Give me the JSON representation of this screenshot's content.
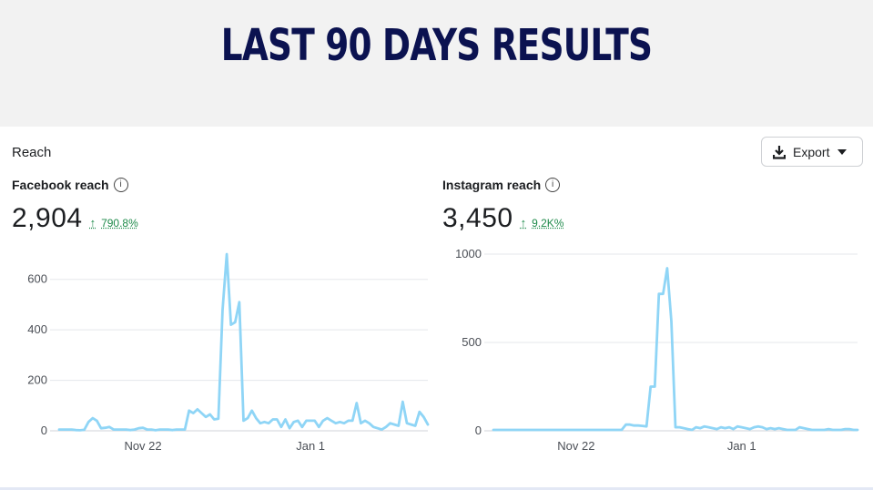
{
  "banner": {
    "title": "LAST 90 DAYS RESULTS"
  },
  "section": {
    "title": "Reach"
  },
  "export_button": {
    "label": "Export",
    "icon": "download-icon"
  },
  "colors": {
    "line": "#8fd5f6",
    "positive": "#1e8a4a",
    "banner_title": "#0b1250"
  },
  "chart_data": [
    {
      "type": "line",
      "title": "Facebook reach",
      "value": "2,904",
      "change": "790.8%",
      "change_direction": "up",
      "ylim": [
        0,
        700
      ],
      "y_ticks": [
        0,
        200,
        400,
        600
      ],
      "x_tick_labels": [
        {
          "label": "Nov 22",
          "day": 20
        },
        {
          "label": "Jan 1",
          "day": 60
        }
      ],
      "series": [
        {
          "values": [
            5,
            5,
            5,
            5,
            3,
            2,
            4,
            35,
            50,
            40,
            10,
            12,
            15,
            5,
            5,
            5,
            5,
            3,
            5,
            10,
            12,
            5,
            5,
            2,
            5,
            5,
            5,
            3,
            5,
            5,
            5,
            80,
            70,
            85,
            70,
            55,
            65,
            45,
            48,
            480,
            700,
            420,
            430,
            510,
            40,
            50,
            80,
            50,
            30,
            35,
            30,
            45,
            45,
            15,
            45,
            10,
            35,
            40,
            15,
            40,
            40,
            40,
            15,
            40,
            50,
            40,
            30,
            35,
            30,
            40,
            40,
            110,
            30,
            40,
            30,
            15,
            10,
            5,
            15,
            30,
            25,
            20,
            115,
            30,
            25,
            20,
            75,
            55,
            25
          ]
        }
      ]
    },
    {
      "type": "line",
      "title": "Instagram reach",
      "value": "3,450",
      "change": "9.2K%",
      "change_direction": "up",
      "ylim": [
        0,
        1000
      ],
      "y_ticks": [
        0,
        500,
        1000
      ],
      "x_tick_labels": [
        {
          "label": "Nov 22",
          "day": 20
        },
        {
          "label": "Jan 1",
          "day": 60
        }
      ],
      "series": [
        {
          "values": [
            5,
            5,
            5,
            5,
            5,
            5,
            5,
            5,
            5,
            5,
            5,
            5,
            5,
            5,
            5,
            5,
            5,
            5,
            5,
            5,
            5,
            5,
            5,
            5,
            5,
            5,
            5,
            5,
            5,
            5,
            5,
            5,
            35,
            35,
            30,
            30,
            28,
            25,
            250,
            250,
            775,
            775,
            920,
            620,
            20,
            20,
            15,
            10,
            5,
            20,
            15,
            25,
            20,
            15,
            10,
            20,
            15,
            20,
            10,
            25,
            20,
            15,
            10,
            20,
            25,
            20,
            10,
            15,
            10,
            15,
            10,
            5,
            5,
            5,
            20,
            15,
            10,
            5,
            5,
            5,
            5,
            10,
            5,
            5,
            5,
            10,
            10,
            5,
            5
          ]
        }
      ]
    }
  ]
}
